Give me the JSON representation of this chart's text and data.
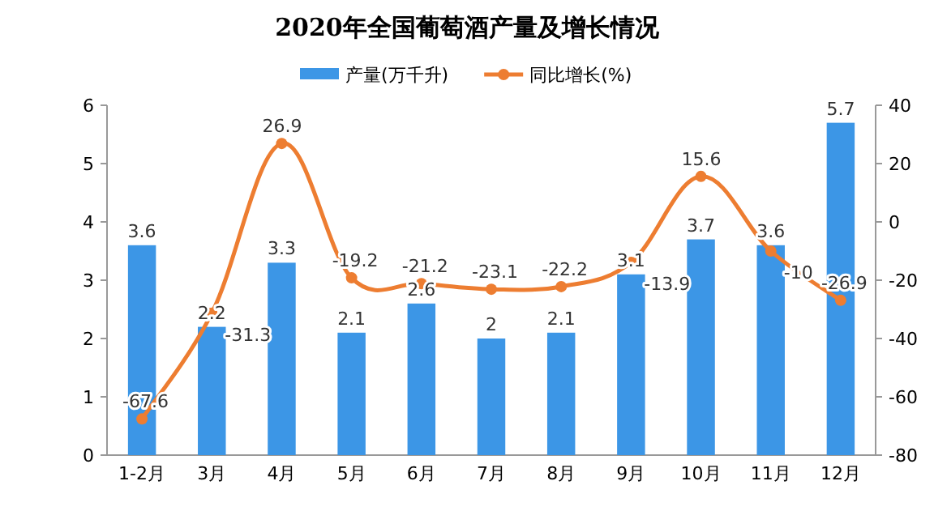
{
  "chart_data": {
    "type": "bar",
    "title": "2020年全国葡萄酒产量及增长情况",
    "categories": [
      "1-2月",
      "3月",
      "4月",
      "5月",
      "6月",
      "7月",
      "8月",
      "9月",
      "10月",
      "11月",
      "12月"
    ],
    "series": [
      {
        "name": "产量(万千升)",
        "color": "#3c96e6",
        "values": [
          3.6,
          2.2,
          3.3,
          2.1,
          2.6,
          2,
          2.1,
          3.1,
          3.7,
          3.6,
          5.7
        ]
      },
      {
        "name": "同比增长(%)",
        "type": "line",
        "axis": "y2",
        "color": "#ed7d31",
        "marker": "circle",
        "values": [
          -67.6,
          -31.3,
          26.9,
          -19.2,
          -21.2,
          -23.1,
          -22.2,
          -13.9,
          15.6,
          -10,
          -26.9
        ]
      }
    ],
    "ylim": [
      0,
      6
    ],
    "yticks": [
      0,
      1,
      2,
      3,
      4,
      5,
      6
    ],
    "y2lim": [
      -80,
      40
    ],
    "y2ticks": [
      -80,
      -60,
      -40,
      -20,
      0,
      20,
      40
    ],
    "data_labels": true,
    "legend": "top",
    "grid": false
  }
}
